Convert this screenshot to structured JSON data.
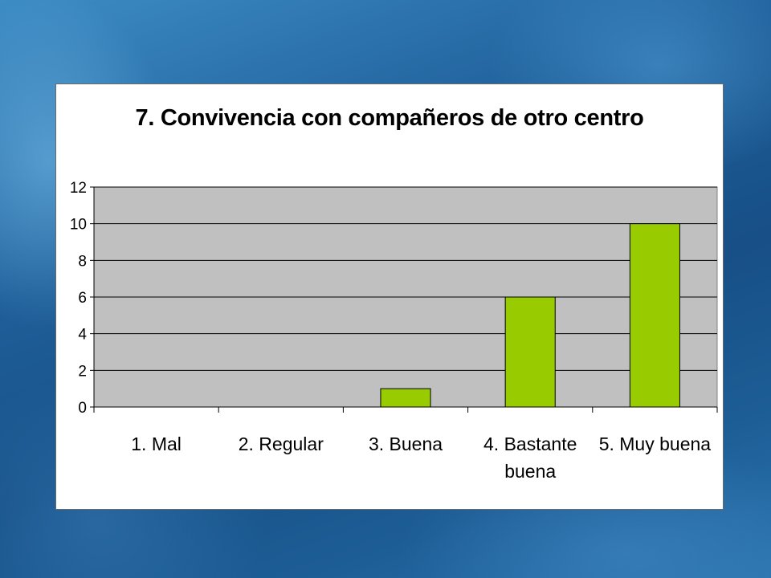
{
  "chart_data": {
    "type": "bar",
    "title": "7. Convivencia con compañeros de otro centro",
    "xlabel": "",
    "ylabel": "",
    "categories": [
      "1. Mal",
      "2. Regular",
      "3. Buena",
      "4. Bastante buena",
      "5. Muy buena"
    ],
    "category_lines": [
      [
        "1. Mal"
      ],
      [
        "2. Regular"
      ],
      [
        "3. Buena"
      ],
      [
        "4. Bastante",
        "buena"
      ],
      [
        "5. Muy buena"
      ]
    ],
    "values": [
      0,
      0,
      1,
      6,
      10
    ],
    "ylim": [
      0,
      12
    ],
    "yticks": [
      0,
      2,
      4,
      6,
      8,
      10,
      12
    ],
    "grid": true,
    "legend": "none",
    "colors": {
      "bar": "#99cc00",
      "plot_background": "#c0c0c0",
      "gridline": "#000000"
    }
  }
}
